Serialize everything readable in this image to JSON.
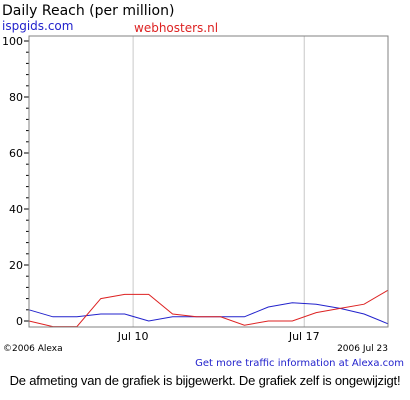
{
  "chart_data": {
    "type": "line",
    "title": "Daily Reach (per million)",
    "series": [
      {
        "name": "ispgids.com",
        "color": "#2222cc",
        "values": [
          4,
          1.5,
          1.5,
          2.5,
          2.5,
          0,
          1.5,
          1.5,
          1.5,
          1.5,
          5,
          6.5,
          6,
          4.5,
          2.5,
          -1
        ]
      },
      {
        "name": "webhosters.nl",
        "color": "#dd2222",
        "values": [
          0,
          -2,
          -2,
          8,
          9.5,
          9.5,
          2.5,
          1.5,
          1.5,
          -1.5,
          0,
          0,
          3,
          4.5,
          6,
          11
        ]
      }
    ],
    "x_ticks": [
      {
        "label": "Jul 10",
        "index": 4.35
      },
      {
        "label": "Jul 17",
        "index": 11.5
      }
    ],
    "y_ticks": [
      "0",
      "20",
      "40",
      "60",
      "80",
      "100"
    ],
    "ylim": [
      0,
      100
    ],
    "grid": true,
    "legend": "top-left"
  },
  "footer": {
    "copyright": "©2006 Alexa",
    "date": "2006 Jul 23",
    "link": "Get more traffic information at Alexa.com"
  },
  "caption": "De afmeting van de grafiek is bijgewerkt. De grafiek zelf is ongewijzigt!"
}
